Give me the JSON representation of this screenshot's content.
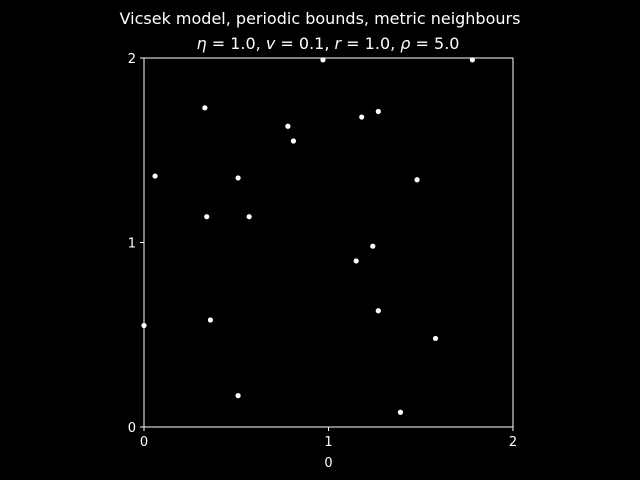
{
  "chart_data": {
    "type": "scatter",
    "title_line1": "Vicsek model, periodic bounds, metric neighbours",
    "subtitle_parts": [
      {
        "sym": "η",
        "eq": " = 1.0, "
      },
      {
        "sym": "v",
        "eq": " = 0.1, "
      },
      {
        "sym": "r",
        "eq": " = 1.0, "
      },
      {
        "sym": "ρ",
        "eq": " = 5.0"
      }
    ],
    "xlabel": "0",
    "ylabel": "",
    "xlim": [
      0,
      2
    ],
    "ylim": [
      0,
      2
    ],
    "xticks": [
      {
        "value": 0,
        "label": "0"
      },
      {
        "value": 1,
        "label": "1"
      },
      {
        "value": 2,
        "label": "2"
      }
    ],
    "yticks": [
      {
        "value": 0,
        "label": "0"
      },
      {
        "value": 1,
        "label": "1"
      },
      {
        "value": 2,
        "label": "2"
      }
    ],
    "grid": false,
    "colors": {
      "background": "#000000",
      "foreground": "#ffffff",
      "points": "#ffffff"
    },
    "points": [
      {
        "x": 0.97,
        "y": 1.99
      },
      {
        "x": 1.78,
        "y": 1.99
      },
      {
        "x": 0.33,
        "y": 1.73
      },
      {
        "x": 1.27,
        "y": 1.71
      },
      {
        "x": 1.18,
        "y": 1.68
      },
      {
        "x": 0.78,
        "y": 1.63
      },
      {
        "x": 0.81,
        "y": 1.55
      },
      {
        "x": 0.06,
        "y": 1.36
      },
      {
        "x": 0.51,
        "y": 1.35
      },
      {
        "x": 1.48,
        "y": 1.34
      },
      {
        "x": 0.34,
        "y": 1.14
      },
      {
        "x": 0.57,
        "y": 1.14
      },
      {
        "x": 1.24,
        "y": 0.98
      },
      {
        "x": 1.15,
        "y": 0.9
      },
      {
        "x": 1.27,
        "y": 0.63
      },
      {
        "x": 0.36,
        "y": 0.58
      },
      {
        "x": 0.0,
        "y": 0.55
      },
      {
        "x": 1.58,
        "y": 0.48
      },
      {
        "x": 0.51,
        "y": 0.17
      },
      {
        "x": 1.39,
        "y": 0.08
      }
    ]
  }
}
